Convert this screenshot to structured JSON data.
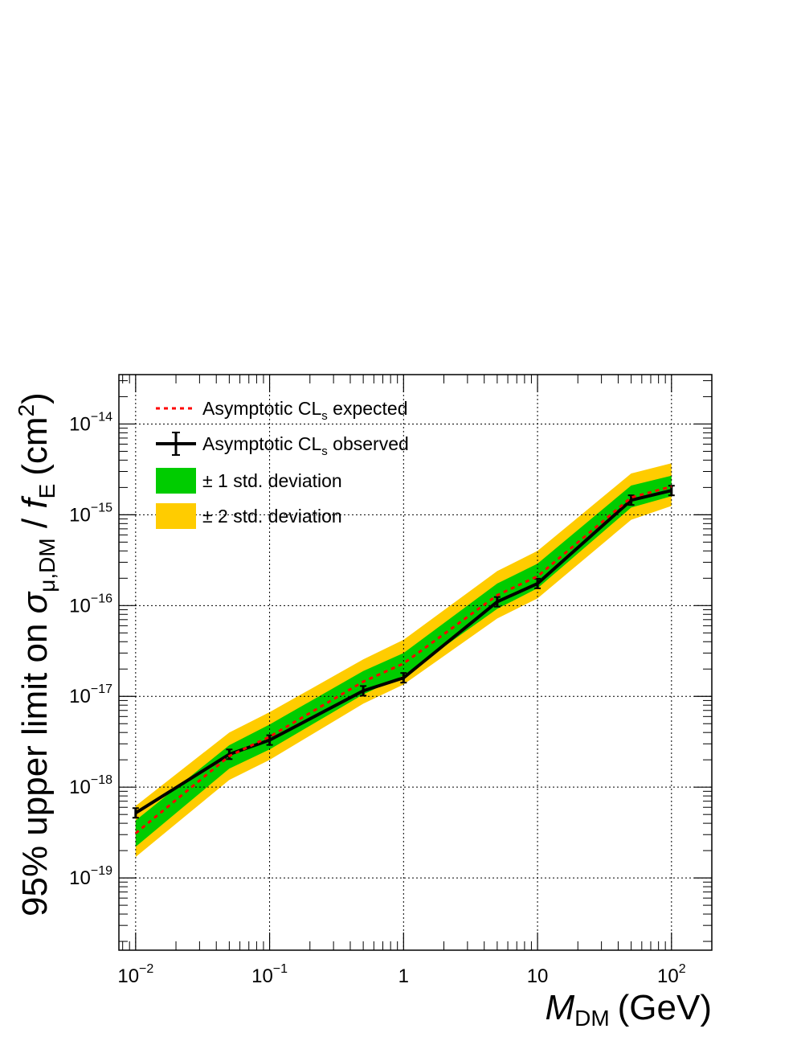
{
  "chart_data": {
    "type": "line",
    "xlabel": {
      "symbol": "M",
      "subscript": "DM",
      "unit": "(GeV)"
    },
    "ylabel": {
      "prefix": "95% upper limit on ",
      "sigma": "σ",
      "sigma_sub": "μ,DM",
      "slash": " / ",
      "f": "f",
      "f_sub": "E",
      "unit": "(cm",
      "unit_sup": "2",
      "unit_close": ")"
    },
    "x_scale": "log",
    "y_scale": "log",
    "xlim": [
      0.0075,
      200
    ],
    "ylim": [
      1.6e-20,
      3.5e-14
    ],
    "grid": true,
    "legend_position": "top-left",
    "x_ticks": [
      {
        "value": 0.01,
        "base": "10",
        "exp": "−2"
      },
      {
        "value": 0.1,
        "base": "10",
        "exp": "−1"
      },
      {
        "value": 1,
        "base": "1",
        "exp": ""
      },
      {
        "value": 10,
        "base": "10",
        "exp": ""
      },
      {
        "value": 100,
        "base": "10",
        "exp": "2"
      }
    ],
    "y_ticks": [
      {
        "value": 1e-19,
        "base": "10",
        "exp": "−19"
      },
      {
        "value": 1e-18,
        "base": "10",
        "exp": "−18"
      },
      {
        "value": 1e-17,
        "base": "10",
        "exp": "−17"
      },
      {
        "value": 1e-16,
        "base": "10",
        "exp": "−16"
      },
      {
        "value": 1e-15,
        "base": "10",
        "exp": "−15"
      },
      {
        "value": 1e-14,
        "base": "10",
        "exp": "−14"
      }
    ],
    "x": [
      0.01,
      0.05,
      0.1,
      0.5,
      1,
      5,
      10,
      50,
      100
    ],
    "expected": [
      3.1e-19,
      2.2e-18,
      3.6e-18,
      1.45e-17,
      2.3e-17,
      1.3e-16,
      2.1e-16,
      1.55e-15,
      2.05e-15
    ],
    "observed": [
      5.2e-19,
      2.3e-18,
      3.3e-18,
      1.15e-17,
      1.6e-17,
      1.1e-16,
      1.75e-16,
      1.45e-15,
      1.85e-15
    ],
    "band_1sigma": {
      "lower": [
        2.2e-19,
        1.6e-18,
        2.6e-18,
        1.05e-17,
        1.7e-17,
        9.2e-17,
        1.55e-16,
        1.2e-15,
        1.6e-15
      ],
      "upper": [
        4.3e-19,
        2.9e-18,
        4.9e-18,
        1.9e-17,
        3e-17,
        1.75e-16,
        2.9e-16,
        2.1e-15,
        2.7e-15
      ]
    },
    "band_2sigma": {
      "lower": [
        1.7e-19,
        1.2e-18,
        2e-18,
        8.3e-18,
        1.35e-17,
        7.2e-17,
        1.2e-16,
        8.8e-16,
        1.25e-15
      ],
      "upper": [
        6.2e-19,
        4e-18,
        6.7e-18,
        2.55e-17,
        4.2e-17,
        2.4e-16,
        4e-16,
        2.85e-15,
        3.7e-15
      ]
    },
    "colors": {
      "band_1sigma": "#00cc00",
      "band_2sigma": "#ffcc00",
      "expected": "#ff0000",
      "observed": "#000000"
    },
    "legend": [
      {
        "key": "expected",
        "text": "Asymptotic CL",
        "sub": "s",
        "suffix": " expected"
      },
      {
        "key": "observed",
        "text": "Asymptotic CL",
        "sub": "s",
        "suffix": " observed"
      },
      {
        "key": "band_1sigma",
        "text": "± 1 std. deviation",
        "sub": "",
        "suffix": ""
      },
      {
        "key": "band_2sigma",
        "text": "± 2 std. deviation",
        "sub": "",
        "suffix": ""
      }
    ]
  }
}
